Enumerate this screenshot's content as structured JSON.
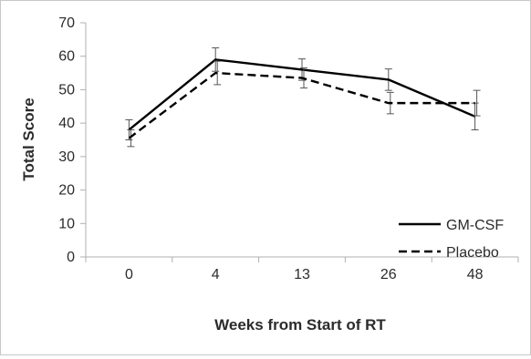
{
  "chart_data": {
    "type": "line",
    "xlabel": "Weeks from Start of RT",
    "ylabel": "Total Score",
    "categories": [
      "0",
      "4",
      "13",
      "26",
      "48"
    ],
    "ylim": [
      0,
      70
    ],
    "yticks": [
      0,
      10,
      20,
      30,
      40,
      50,
      60,
      70
    ],
    "grid": false,
    "legend_position": "bottom-right",
    "series": [
      {
        "name": "GM-CSF",
        "line_style": "solid",
        "color": "#000000",
        "values": [
          38,
          59,
          56,
          53,
          42
        ],
        "error": [
          3,
          3.5,
          3.2,
          3.2,
          4
        ]
      },
      {
        "name": "Placebo",
        "line_style": "dashed",
        "color": "#000000",
        "values": [
          35.5,
          55,
          53.5,
          46,
          46
        ],
        "error": [
          2.5,
          3.5,
          3,
          3.2,
          3.8
        ]
      }
    ]
  }
}
